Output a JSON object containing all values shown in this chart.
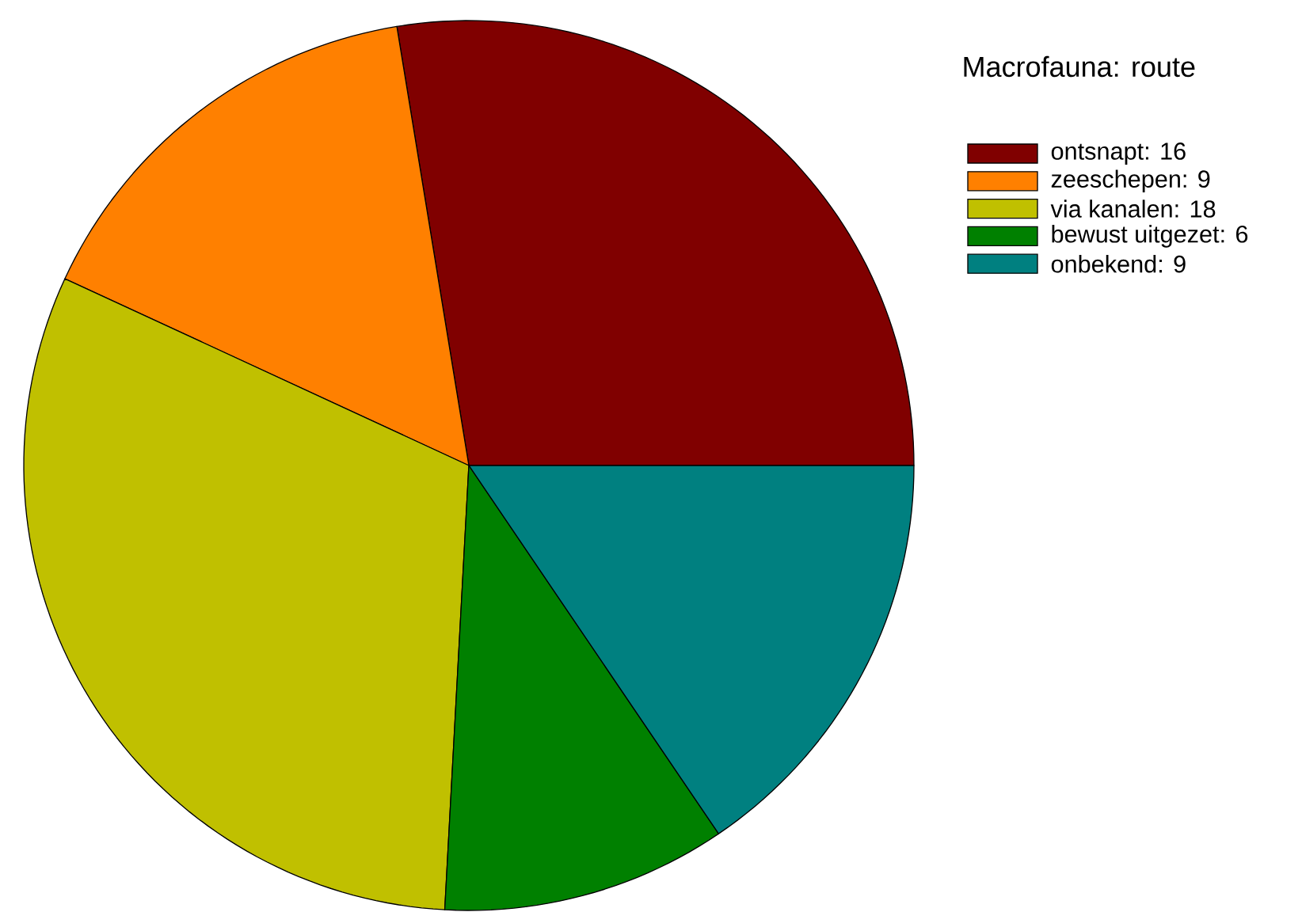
{
  "chart_data": {
    "type": "pie",
    "title": "Macrofauna: route",
    "categories": [
      "ontsnapt: 16",
      "zeeschepen: 9",
      "via kanalen: 18",
      "bewust uitgezet: 6",
      "onbekend: 9"
    ],
    "values": [
      16,
      9,
      18,
      6,
      9
    ],
    "colors": [
      "#800000",
      "#ff8000",
      "#c0c000",
      "#008000",
      "#008080"
    ],
    "legend": "top right"
  }
}
